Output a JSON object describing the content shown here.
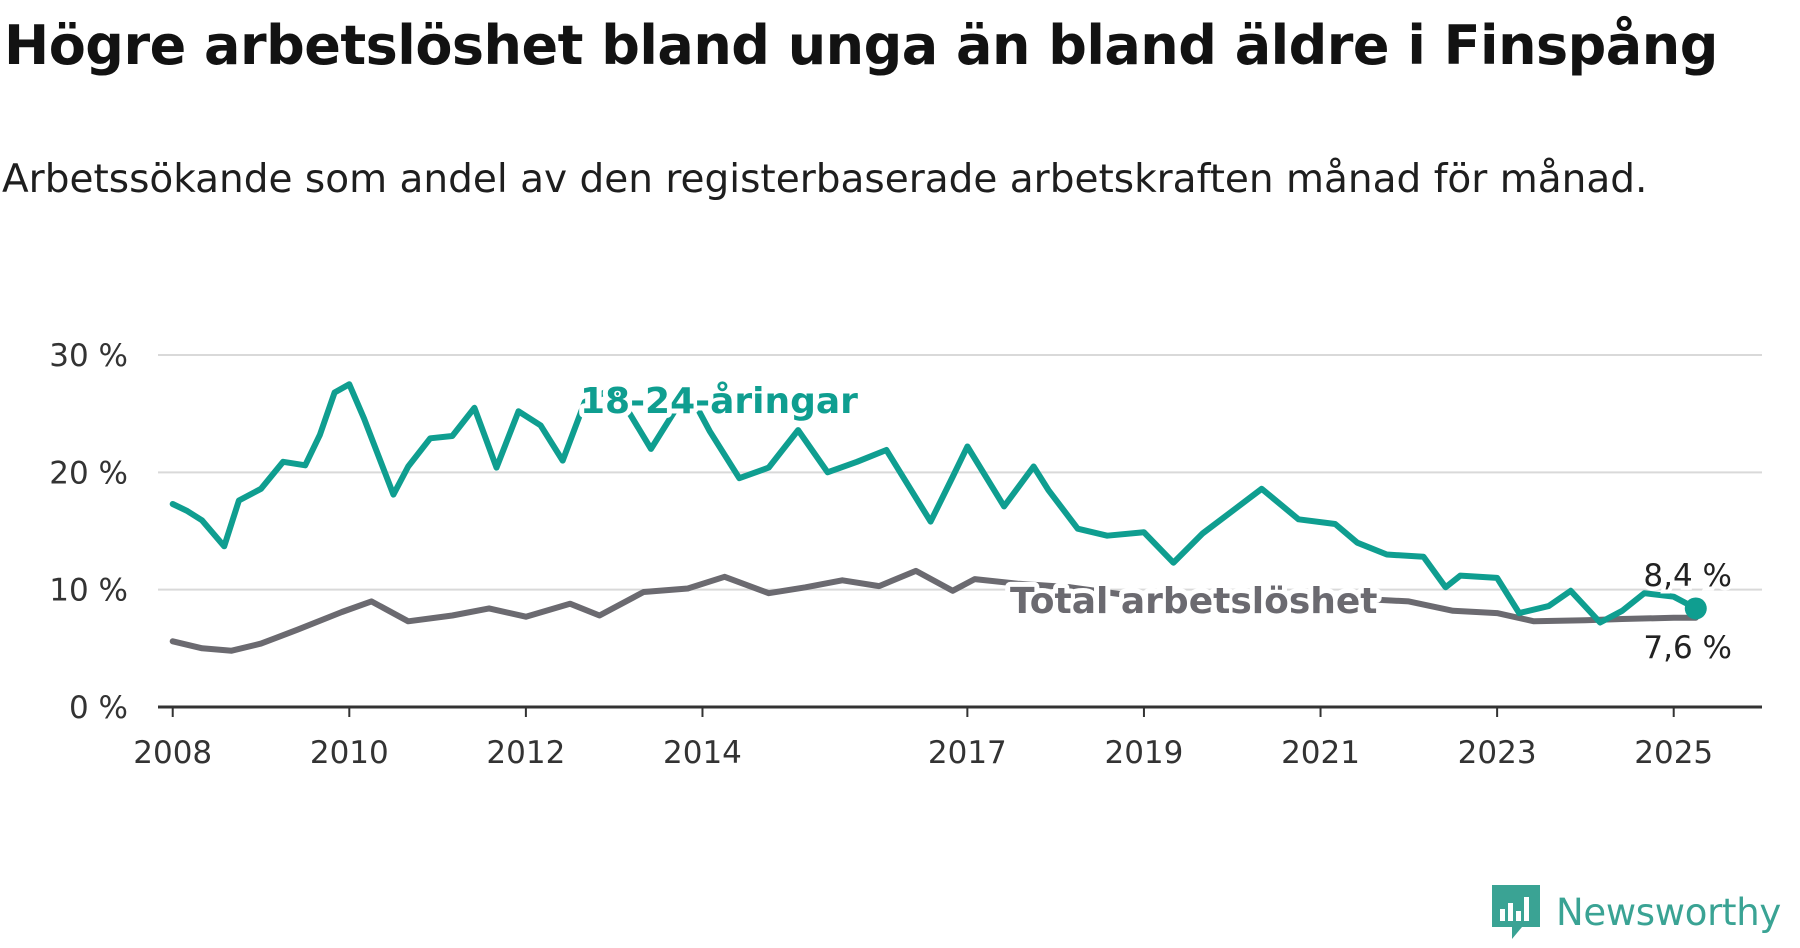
{
  "title": "Högre arbetslöshet bland unga än bland äldre i Finspång",
  "subtitle": "Arbetssökande som andel av den registerbaserade arbetskraften månad för månad.",
  "brand": "Newsworthy",
  "colors": {
    "youth": "#0f9e90",
    "total": "#6b6a70",
    "grid": "#d9d9d9",
    "axis": "#333333",
    "brand": "#3aa394"
  },
  "chart_data": {
    "type": "line",
    "title": "Högre arbetslöshet bland unga än bland äldre i Finspång",
    "subtitle": "Arbetssökande som andel av den registerbaserade arbetskraften månad för månad.",
    "xlabel": "",
    "ylabel": "",
    "x_ticks": [
      "2008",
      "2010",
      "2012",
      "2014",
      "2017",
      "2019",
      "2021",
      "2023",
      "2025"
    ],
    "y_ticks": [
      "0 %",
      "10 %",
      "20 %",
      "30 %"
    ],
    "ylim": [
      0,
      30
    ],
    "xlim": [
      "2007-11",
      "2026-01"
    ],
    "grid": "horizontal",
    "legend": "direct labels on lines",
    "series": [
      {
        "name": "18-24-åringar",
        "color": "#0f9e90",
        "points": [
          [
            "2008-01",
            17.3
          ],
          [
            "2008-03",
            16.7
          ],
          [
            "2008-05",
            15.9
          ],
          [
            "2008-08",
            13.7
          ],
          [
            "2008-10",
            17.6
          ],
          [
            "2009-01",
            18.6
          ],
          [
            "2009-04",
            20.9
          ],
          [
            "2009-07",
            20.6
          ],
          [
            "2009-09",
            23.2
          ],
          [
            "2009-11",
            26.8
          ],
          [
            "2010-01",
            27.5
          ],
          [
            "2010-03",
            24.6
          ],
          [
            "2010-07",
            18.1
          ],
          [
            "2010-09",
            20.5
          ],
          [
            "2010-12",
            22.9
          ],
          [
            "2011-03",
            23.1
          ],
          [
            "2011-06",
            25.5
          ],
          [
            "2011-09",
            20.4
          ],
          [
            "2011-12",
            25.2
          ],
          [
            "2012-03",
            24.0
          ],
          [
            "2012-06",
            21.0
          ],
          [
            "2012-09",
            26.0
          ],
          [
            "2013-01",
            27.2
          ],
          [
            "2013-06",
            22.0
          ],
          [
            "2013-11",
            27.0
          ],
          [
            "2014-02",
            23.5
          ],
          [
            "2014-06",
            19.5
          ],
          [
            "2014-10",
            20.4
          ],
          [
            "2015-02",
            23.6
          ],
          [
            "2015-06",
            20.0
          ],
          [
            "2015-10",
            20.9
          ],
          [
            "2016-02",
            21.9
          ],
          [
            "2016-08",
            15.8
          ],
          [
            "2016-11",
            19.6
          ],
          [
            "2017-01",
            22.2
          ],
          [
            "2017-06",
            17.1
          ],
          [
            "2017-10",
            20.5
          ],
          [
            "2017-12",
            18.5
          ],
          [
            "2018-04",
            15.2
          ],
          [
            "2018-08",
            14.6
          ],
          [
            "2019-01",
            14.9
          ],
          [
            "2019-05",
            12.3
          ],
          [
            "2019-09",
            14.8
          ],
          [
            "2020-01",
            16.7
          ],
          [
            "2020-05",
            18.6
          ],
          [
            "2020-10",
            16.0
          ],
          [
            "2021-03",
            15.6
          ],
          [
            "2021-06",
            14.0
          ],
          [
            "2021-10",
            13.0
          ],
          [
            "2022-03",
            12.8
          ],
          [
            "2022-06",
            10.2
          ],
          [
            "2022-08",
            11.2
          ],
          [
            "2023-01",
            11.0
          ],
          [
            "2023-04",
            8.0
          ],
          [
            "2023-08",
            8.6
          ],
          [
            "2023-11",
            9.9
          ],
          [
            "2024-03",
            7.2
          ],
          [
            "2024-06",
            8.2
          ],
          [
            "2024-09",
            9.7
          ],
          [
            "2025-01",
            9.4
          ],
          [
            "2025-04",
            8.4
          ]
        ],
        "end_label": "8,4 %"
      },
      {
        "name": "Total arbetslöshet",
        "color": "#6b6a70",
        "points": [
          [
            "2008-01",
            5.6
          ],
          [
            "2008-05",
            5.0
          ],
          [
            "2008-09",
            4.8
          ],
          [
            "2009-01",
            5.4
          ],
          [
            "2009-06",
            6.6
          ],
          [
            "2009-12",
            8.1
          ],
          [
            "2010-04",
            9.0
          ],
          [
            "2010-09",
            7.3
          ],
          [
            "2011-03",
            7.8
          ],
          [
            "2011-08",
            8.4
          ],
          [
            "2012-01",
            7.7
          ],
          [
            "2012-07",
            8.8
          ],
          [
            "2012-11",
            7.8
          ],
          [
            "2013-05",
            9.8
          ],
          [
            "2013-11",
            10.1
          ],
          [
            "2014-04",
            11.1
          ],
          [
            "2014-10",
            9.7
          ],
          [
            "2015-03",
            10.2
          ],
          [
            "2015-08",
            10.8
          ],
          [
            "2016-01",
            10.3
          ],
          [
            "2016-06",
            11.6
          ],
          [
            "2016-11",
            9.9
          ],
          [
            "2017-02",
            10.9
          ],
          [
            "2017-08",
            10.5
          ],
          [
            "2018-03",
            10.2
          ],
          [
            "2018-10",
            9.6
          ],
          [
            "2019-05",
            9.2
          ],
          [
            "2020-01",
            9.5
          ],
          [
            "2020-08",
            9.1
          ],
          [
            "2021-04",
            9.3
          ],
          [
            "2022-01",
            9.0
          ],
          [
            "2022-07",
            8.2
          ],
          [
            "2023-01",
            8.0
          ],
          [
            "2023-06",
            7.3
          ],
          [
            "2024-01",
            7.4
          ],
          [
            "2024-06",
            7.5
          ],
          [
            "2025-01",
            7.6
          ],
          [
            "2025-04",
            7.6
          ]
        ],
        "end_label": "7,6 %"
      }
    ]
  }
}
